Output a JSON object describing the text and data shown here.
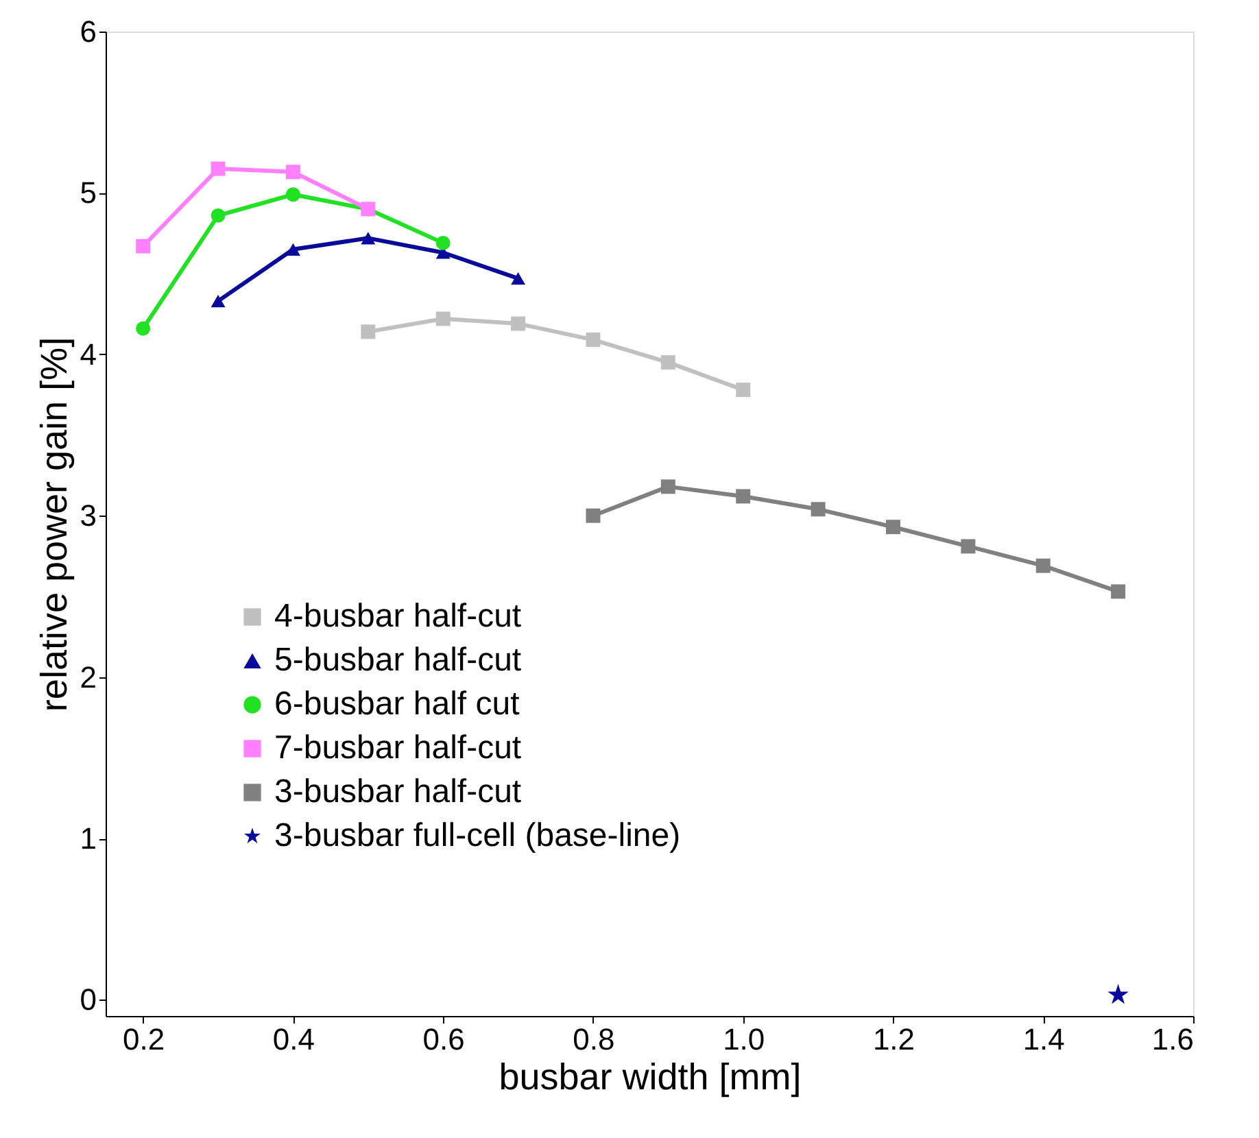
{
  "chart_data": {
    "type": "line",
    "xlabel": "busbar width [mm]",
    "ylabel": "relative power gain [%]",
    "xlim": [
      0.15,
      1.6
    ],
    "ylim": [
      -0.1,
      6
    ],
    "xticks": [
      0.2,
      0.4,
      0.6,
      0.8,
      {
        "value": 1,
        "label": "1.0"
      },
      1.2,
      1.4,
      1.6
    ],
    "yticks": [
      0,
      1,
      2,
      3,
      4,
      5,
      6
    ],
    "grid": false,
    "legend": "bottom left",
    "series": [
      {
        "name": "4-busbar half-cut",
        "color": "#c0c0c0",
        "marker": "square",
        "x": [
          0.5,
          0.6,
          0.7,
          0.8,
          0.9,
          1.0
        ],
        "values": [
          4.14,
          4.22,
          4.19,
          4.09,
          3.95,
          3.78
        ]
      },
      {
        "name": "5-busbar half-cut",
        "color": "#0a0a9a",
        "marker": "triangle",
        "x": [
          0.3,
          0.4,
          0.5,
          0.6,
          0.7
        ],
        "values": [
          4.33,
          4.65,
          4.72,
          4.63,
          4.47
        ]
      },
      {
        "name": "6-busbar half cut",
        "color": "#22e022",
        "marker": "circle",
        "x": [
          0.2,
          0.3,
          0.4,
          0.5,
          0.6
        ],
        "values": [
          4.16,
          4.86,
          4.99,
          4.9,
          4.69
        ]
      },
      {
        "name": "7-busbar half-cut",
        "color": "#ff80ff",
        "marker": "square",
        "x": [
          0.2,
          0.3,
          0.4,
          0.5
        ],
        "values": [
          4.67,
          5.15,
          5.13,
          4.9
        ]
      },
      {
        "name": "3-busbar half-cut",
        "color": "#808080",
        "marker": "square",
        "x": [
          0.8,
          0.9,
          1.0,
          1.1,
          1.2,
          1.3,
          1.4,
          1.5
        ],
        "values": [
          3.0,
          3.18,
          3.12,
          3.04,
          2.93,
          2.81,
          2.69,
          2.53
        ]
      },
      {
        "name": "3-busbar full-cell (base-line)",
        "type": "scatter",
        "color": "#0a0a9a",
        "marker": "star",
        "x": [
          1.5
        ],
        "values": [
          0.03
        ]
      }
    ]
  }
}
